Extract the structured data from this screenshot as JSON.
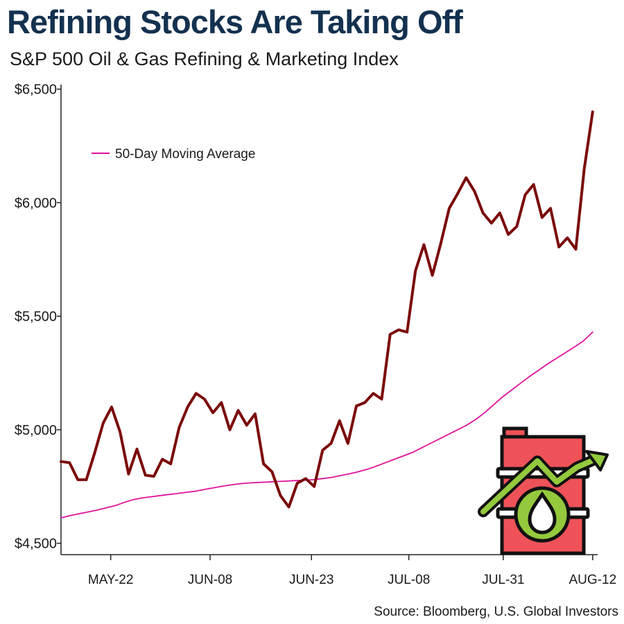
{
  "title": "Refining Stocks Are Taking Off",
  "subtitle": "S&P 500 Oil & Gas Refining & Marketing Index",
  "source": "Source: Bloomberg, U.S. Global Investors",
  "colors": {
    "title": "#14314f",
    "index_line": "#7b0a0a",
    "moving_average": "#e0129b",
    "barrel": "#ef5259",
    "arrow": "#94c93d"
  },
  "icon": "oil-barrel-rising-arrow-icon",
  "chart_data": {
    "type": "line",
    "ylim": [
      4450,
      6520
    ],
    "yticks": [
      4500,
      5000,
      5500,
      6000,
      6500
    ],
    "ytick_labels": [
      "$4,500",
      "$5,000",
      "$5,500",
      "$6,000",
      "$6,500"
    ],
    "xlim": [
      0,
      54
    ],
    "xticks": [
      5,
      15,
      25.2,
      35,
      44.5,
      53.5
    ],
    "xtick_labels": [
      "MAY-22",
      "JUN-08",
      "JUN-23",
      "JUL-08",
      "JUL-31",
      "AUG-12"
    ],
    "grid": false,
    "legend": {
      "position": "upper-left",
      "label": "50-Day Moving Average"
    },
    "series": [
      {
        "key": "index",
        "values": [
          4860,
          4855,
          4780,
          4780,
          4900,
          5030,
          5100,
          4990,
          4805,
          4915,
          4800,
          4795,
          4870,
          4850,
          5010,
          5100,
          5160,
          5135,
          5075,
          5120,
          5000,
          5085,
          5020,
          5070,
          4850,
          4815,
          4710,
          4660,
          4765,
          4785,
          4750,
          4910,
          4940,
          5040,
          4940,
          5105,
          5120,
          5160,
          5135,
          5420,
          5440,
          5430,
          5700,
          5815,
          5680,
          5820,
          5975,
          6040,
          6110,
          6050,
          5955,
          5910,
          5955,
          5860,
          5895,
          6035,
          6080,
          5935,
          5975,
          5805,
          5845,
          5795,
          6150,
          6400
        ]
      },
      {
        "key": "moving_average",
        "name": "50-Day Moving Average",
        "values": [
          4612,
          4622,
          4630,
          4638,
          4646,
          4656,
          4666,
          4680,
          4692,
          4700,
          4705,
          4710,
          4715,
          4720,
          4725,
          4730,
          4738,
          4745,
          4752,
          4758,
          4763,
          4766,
          4768,
          4770,
          4772,
          4774,
          4776,
          4778,
          4780,
          4785,
          4790,
          4798,
          4806,
          4815,
          4826,
          4840,
          4855,
          4870,
          4885,
          4900,
          4920,
          4940,
          4960,
          4980,
          5000,
          5020,
          5045,
          5075,
          5110,
          5145,
          5175,
          5205,
          5235,
          5262,
          5290,
          5315,
          5340,
          5365,
          5392,
          5430
        ]
      }
    ]
  }
}
